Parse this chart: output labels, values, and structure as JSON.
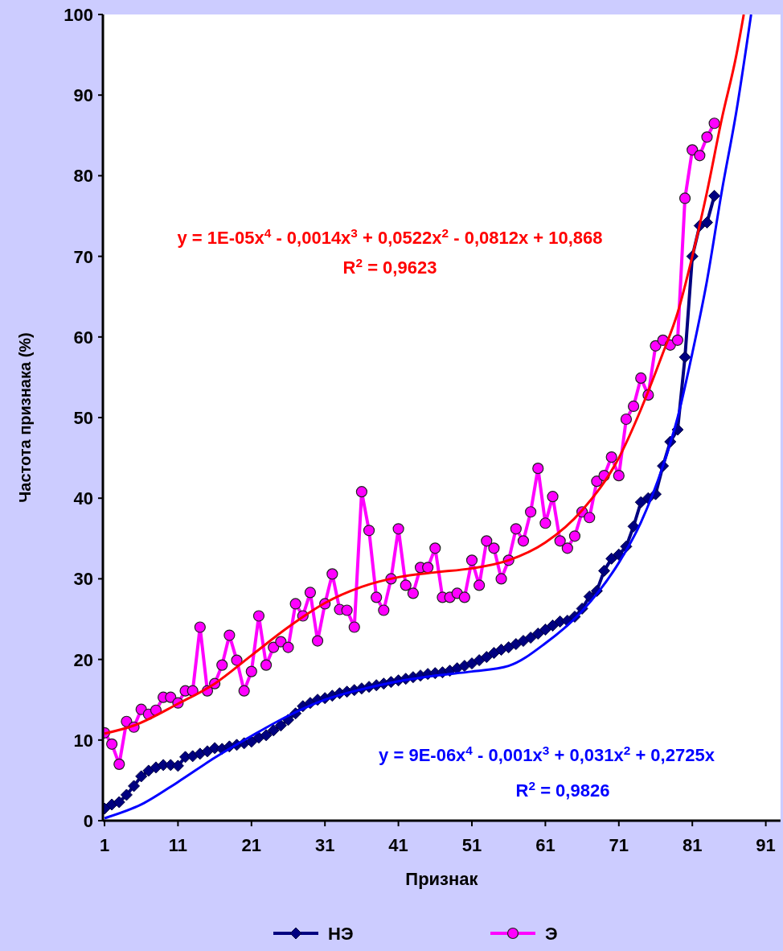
{
  "chart_data": {
    "type": "line",
    "xlabel": "Признак",
    "ylabel": "Частота признака (%)",
    "xlim": [
      1,
      93
    ],
    "xticks": [
      1,
      11,
      21,
      31,
      41,
      51,
      61,
      71,
      81,
      91
    ],
    "ylim": [
      0,
      100
    ],
    "yticks": [
      0,
      10,
      20,
      30,
      40,
      50,
      60,
      70,
      80,
      90,
      100
    ],
    "grid": false,
    "legend": "bottom",
    "annotations": [
      "y = 1E-05x$^{4}$ - 0,0014x$^{3}$ + 0,0522x$^{2}$ - 0,0812x + 10,868",
      "R$^{2}$ = 0,9623",
      "y = 9E-06x$^{4}$ - 0,001x$^{3}$ + 0,031x$^{2}$ + 0,2725x",
      "R$^{2}$ = 0,9826"
    ],
    "series": [
      {
        "name": "НЭ",
        "color": "#000080",
        "marker": "diamond",
        "x": [
          1,
          2,
          3,
          4,
          5,
          6,
          7,
          8,
          9,
          10,
          11,
          12,
          13,
          14,
          15,
          16,
          17,
          18,
          19,
          20,
          21,
          22,
          23,
          24,
          25,
          26,
          27,
          28,
          29,
          30,
          31,
          32,
          33,
          34,
          35,
          36,
          37,
          38,
          39,
          40,
          41,
          42,
          43,
          44,
          45,
          46,
          47,
          48,
          49,
          50,
          51,
          52,
          53,
          54,
          55,
          56,
          57,
          58,
          59,
          60,
          61,
          62,
          63,
          64,
          65,
          66,
          67,
          68,
          69,
          70,
          71,
          72,
          73,
          74,
          75,
          76,
          77,
          78,
          79,
          80,
          81,
          82,
          83,
          84
        ],
        "values": [
          1.5,
          2.0,
          2.3,
          3.2,
          4.3,
          5.5,
          6.2,
          6.6,
          6.9,
          6.9,
          6.8,
          7.9,
          8.0,
          8.3,
          8.6,
          9.0,
          8.9,
          9.2,
          9.4,
          9.6,
          9.8,
          10.3,
          10.6,
          11.2,
          11.8,
          12.5,
          13.3,
          14.2,
          14.6,
          15.0,
          15.2,
          15.5,
          15.8,
          16.0,
          16.2,
          16.4,
          16.6,
          16.8,
          17.0,
          17.2,
          17.4,
          17.6,
          17.8,
          18.0,
          18.2,
          18.3,
          18.4,
          18.6,
          18.9,
          19.2,
          19.5,
          19.9,
          20.3,
          20.8,
          21.2,
          21.5,
          21.9,
          22.3,
          22.7,
          23.2,
          23.7,
          24.2,
          24.7,
          24.8,
          25.3,
          26.3,
          27.8,
          28.5,
          31.0,
          32.5,
          33.0,
          34.0,
          36.5,
          39.5,
          40.0,
          40.5,
          44.0,
          47.0,
          48.5,
          57.5,
          70.0,
          73.8,
          74.2,
          77.5
        ]
      },
      {
        "name": "Э",
        "color": "#ff00ff",
        "marker": "circle",
        "x": [
          1,
          2,
          3,
          4,
          5,
          6,
          7,
          8,
          9,
          10,
          11,
          12,
          13,
          14,
          15,
          16,
          17,
          18,
          19,
          20,
          21,
          22,
          23,
          24,
          25,
          26,
          27,
          28,
          29,
          30,
          31,
          32,
          33,
          34,
          35,
          36,
          37,
          38,
          39,
          40,
          41,
          42,
          43,
          44,
          45,
          46,
          47,
          48,
          49,
          50,
          51,
          52,
          53,
          54,
          55,
          56,
          57,
          58,
          59,
          60,
          61,
          62,
          63,
          64,
          65,
          66,
          67,
          68,
          69,
          70,
          71,
          72,
          73,
          74,
          75,
          76,
          77,
          78,
          79,
          80,
          81,
          82,
          83,
          84
        ],
        "values": [
          10.9,
          9.5,
          7.0,
          12.3,
          11.6,
          13.8,
          13.2,
          13.7,
          15.3,
          15.3,
          14.6,
          16.1,
          16.1,
          24.0,
          16.1,
          17.0,
          19.3,
          23.0,
          19.9,
          16.1,
          18.5,
          25.4,
          19.3,
          21.5,
          22.2,
          21.5,
          26.9,
          25.4,
          28.3,
          22.3,
          26.9,
          30.6,
          26.2,
          26.1,
          24.0,
          40.8,
          36.0,
          27.7,
          26.1,
          30.0,
          36.2,
          29.2,
          28.2,
          31.4,
          31.4,
          33.8,
          27.7,
          27.7,
          28.2,
          27.7,
          32.3,
          29.2,
          34.7,
          33.8,
          30.0,
          32.3,
          36.2,
          34.7,
          38.3,
          43.7,
          36.9,
          40.2,
          34.7,
          33.8,
          35.3,
          38.3,
          37.6,
          42.1,
          42.8,
          45.1,
          42.8,
          49.8,
          51.4,
          54.9,
          52.8,
          58.9,
          59.6,
          59.0,
          59.6,
          77.2,
          83.2,
          82.5,
          84.8,
          86.5
        ]
      },
      {
        "color": "#ff0000",
        "marker": "none",
        "x": [
          1,
          5,
          11,
          16,
          21,
          26,
          31,
          36,
          41,
          46,
          51,
          56,
          61,
          66,
          71,
          74,
          77,
          79,
          81,
          83,
          85,
          87,
          88
        ],
        "values": [
          10.8,
          11.8,
          14.5,
          17,
          20.5,
          24,
          27,
          29,
          30.2,
          30.8,
          31.3,
          32.3,
          34.5,
          38.5,
          45,
          51,
          58,
          63,
          70,
          78,
          87,
          95,
          100
        ]
      },
      {
        "color": "#0000ff",
        "marker": "none",
        "x": [
          1,
          6,
          11,
          16,
          21,
          26,
          31,
          36,
          41,
          46,
          51,
          56,
          61,
          66,
          71,
          74,
          77,
          79,
          81,
          83,
          85,
          87,
          89
        ],
        "values": [
          0.3,
          2,
          4.8,
          7.8,
          10.5,
          13,
          15,
          16.3,
          17.3,
          18,
          18.5,
          19.2,
          22,
          26,
          32,
          37,
          44,
          50,
          58,
          67,
          78,
          88,
          100
        ]
      }
    ]
  }
}
